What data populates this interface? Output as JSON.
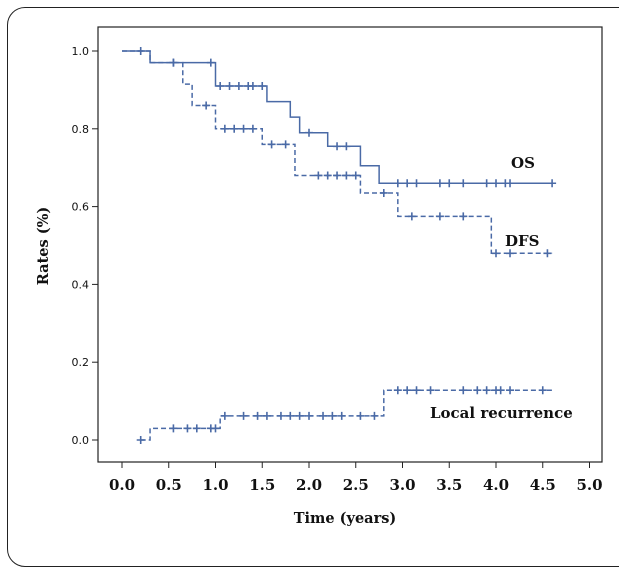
{
  "chart_data": {
    "type": "line",
    "subtype": "kaplan-meier step curves",
    "title": "",
    "xlabel": "Time (years)",
    "ylabel": "Rates (%)",
    "xlim": [
      0.0,
      5.0
    ],
    "ylim": [
      0.0,
      1.0
    ],
    "x_ticks": [
      "0.0",
      "0.5",
      "1.0",
      "1.5",
      "2.0",
      "2.5",
      "3.0",
      "3.5",
      "4.0",
      "4.5",
      "5.0"
    ],
    "y_ticks": [
      "0.0",
      "0.2",
      "0.4",
      "0.6",
      "0.8",
      "1.0"
    ],
    "grid": false,
    "line_color": "#4a6aa6",
    "series": [
      {
        "name": "OS",
        "style": "solid",
        "steps": [
          [
            0.0,
            1.0
          ],
          [
            0.3,
            0.97
          ],
          [
            1.0,
            0.91
          ],
          [
            1.55,
            0.87
          ],
          [
            1.8,
            0.83
          ],
          [
            1.9,
            0.79
          ],
          [
            2.2,
            0.755
          ],
          [
            2.55,
            0.705
          ],
          [
            2.75,
            0.66
          ],
          [
            4.6,
            0.66
          ]
        ],
        "censored": [
          0.2,
          0.55,
          0.95,
          1.05,
          1.15,
          1.25,
          1.35,
          1.4,
          1.5,
          2.0,
          2.3,
          2.4,
          2.95,
          3.05,
          3.15,
          3.4,
          3.5,
          3.65,
          3.9,
          4.0,
          4.1,
          4.15,
          4.6
        ]
      },
      {
        "name": "DFS",
        "style": "dashed",
        "steps": [
          [
            0.0,
            1.0
          ],
          [
            0.3,
            0.97
          ],
          [
            0.65,
            0.915
          ],
          [
            0.75,
            0.86
          ],
          [
            1.0,
            0.8
          ],
          [
            1.5,
            0.76
          ],
          [
            1.85,
            0.68
          ],
          [
            2.55,
            0.635
          ],
          [
            2.95,
            0.575
          ],
          [
            3.95,
            0.48
          ],
          [
            4.6,
            0.48
          ]
        ],
        "censored": [
          0.55,
          0.9,
          1.1,
          1.2,
          1.3,
          1.4,
          1.6,
          1.75,
          2.1,
          2.2,
          2.3,
          2.4,
          2.5,
          2.8,
          3.1,
          3.4,
          3.65,
          4.0,
          4.15,
          4.55
        ]
      },
      {
        "name": "Local recurrence",
        "style": "dashed",
        "steps": [
          [
            0.2,
            0.0
          ],
          [
            0.3,
            0.03
          ],
          [
            1.0,
            0.03
          ],
          [
            1.05,
            0.062
          ],
          [
            2.75,
            0.062
          ],
          [
            2.8,
            0.128
          ],
          [
            4.6,
            0.128
          ]
        ],
        "censored": [
          0.2,
          0.55,
          0.7,
          0.8,
          0.95,
          1.0,
          1.1,
          1.3,
          1.45,
          1.55,
          1.7,
          1.8,
          1.9,
          2.0,
          2.15,
          2.25,
          2.35,
          2.55,
          2.7,
          2.95,
          3.05,
          3.15,
          3.3,
          3.65,
          3.8,
          3.9,
          4.0,
          4.05,
          4.15,
          4.5
        ]
      }
    ]
  }
}
